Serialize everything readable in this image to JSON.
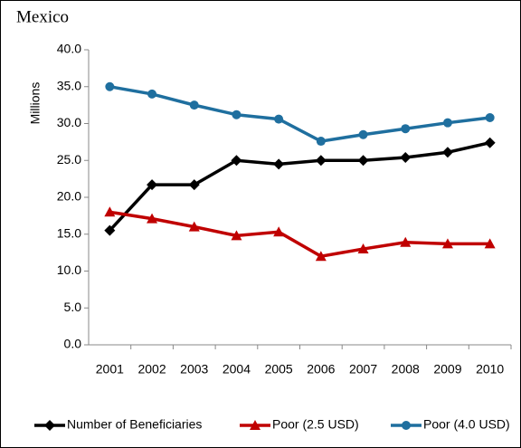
{
  "chart_data": {
    "type": "line",
    "title": "Mexico",
    "y_label": "Millions",
    "categories": [
      "2001",
      "2002",
      "2003",
      "2004",
      "2005",
      "2006",
      "2007",
      "2008",
      "2009",
      "2010"
    ],
    "series": [
      {
        "name": "Number of Beneficiaries",
        "color": "#000000",
        "marker": "diamond",
        "values": [
          15.5,
          21.7,
          21.7,
          25.0,
          24.5,
          25.0,
          25.0,
          25.4,
          26.1,
          27.4
        ]
      },
      {
        "name": "Poor (2.5 USD)",
        "color": "#c00000",
        "marker": "triangle",
        "values": [
          18.0,
          17.1,
          16.0,
          14.8,
          15.3,
          12.0,
          13.0,
          13.9,
          13.7,
          13.7
        ]
      },
      {
        "name": "Poor (4.0 USD)",
        "color": "#1f6f9f",
        "marker": "circle",
        "values": [
          35.0,
          34.0,
          32.5,
          31.2,
          30.6,
          27.6,
          28.5,
          29.3,
          30.1,
          30.8
        ]
      }
    ],
    "ylim": [
      0,
      40
    ],
    "yticks": [
      {
        "value": 0,
        "label": "0.0"
      },
      {
        "value": 5,
        "label": "5.0"
      },
      {
        "value": 10,
        "label": "10.0"
      },
      {
        "value": 15,
        "label": "15.0"
      },
      {
        "value": 20,
        "label": "20.0"
      },
      {
        "value": 25,
        "label": "25.0"
      },
      {
        "value": 30,
        "label": "30.0"
      },
      {
        "value": 35,
        "label": "35.0"
      },
      {
        "value": 40,
        "label": "40.0"
      }
    ],
    "grid": false,
    "legend": "bottom"
  }
}
